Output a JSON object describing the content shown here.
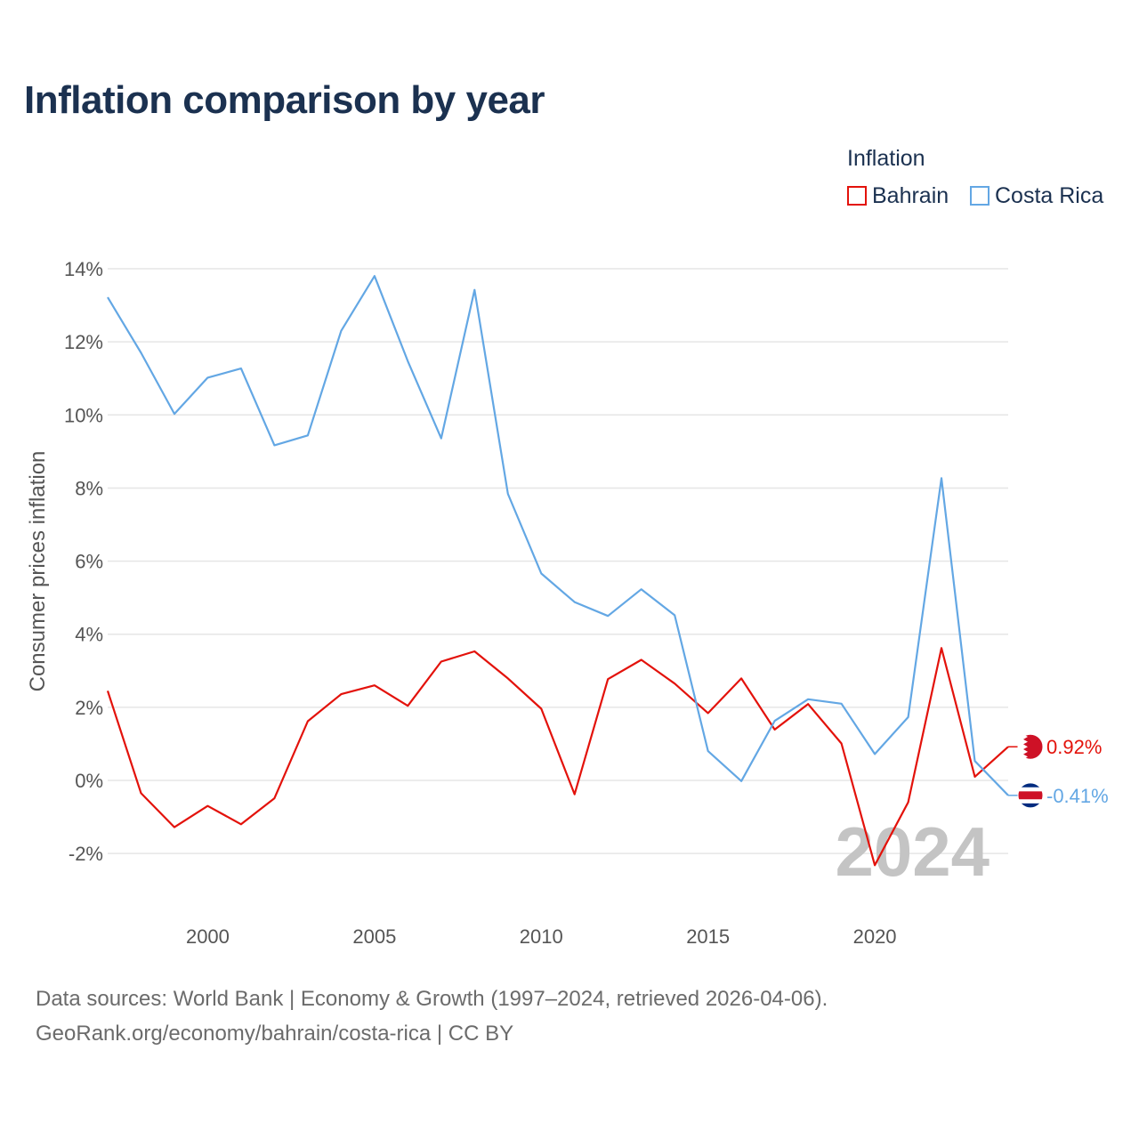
{
  "chart_data": {
    "type": "line",
    "title": "Inflation comparison by year",
    "legend_title": "Inflation",
    "legend_position": "top-right",
    "ylabel": "Consumer prices inflation",
    "xlabel": "",
    "xlim": [
      1997,
      2024
    ],
    "ylim": [
      -3,
      14.5
    ],
    "y_ticks": [
      14,
      12,
      10,
      8,
      6,
      4,
      2,
      0,
      -2
    ],
    "y_tick_labels": [
      "14%",
      "12%",
      "10%",
      "8%",
      "6%",
      "4%",
      "2%",
      "0%",
      "-2%"
    ],
    "x_ticks": [
      2000,
      2005,
      2010,
      2015,
      2020
    ],
    "x_tick_labels": [
      "2000",
      "2005",
      "2010",
      "2015",
      "2020"
    ],
    "grid": true,
    "year_label": "2024",
    "x": [
      1997,
      1998,
      1999,
      2000,
      2001,
      2002,
      2003,
      2004,
      2005,
      2006,
      2007,
      2008,
      2009,
      2010,
      2011,
      2012,
      2013,
      2014,
      2015,
      2016,
      2017,
      2018,
      2019,
      2020,
      2021,
      2022,
      2023,
      2024
    ],
    "series": [
      {
        "name": "Bahrain",
        "color": "#e3120b",
        "values": [
          2.45,
          -0.35,
          -1.28,
          -0.7,
          -1.2,
          -0.49,
          1.62,
          2.36,
          2.6,
          2.04,
          3.25,
          3.53,
          2.79,
          1.96,
          -0.38,
          2.77,
          3.3,
          2.65,
          1.84,
          2.79,
          1.39,
          2.09,
          1.01,
          -2.32,
          -0.6,
          3.62,
          0.1,
          0.92
        ],
        "end_label": "0.92%",
        "flag": "bahrain-flag-icon"
      },
      {
        "name": "Costa Rica",
        "color": "#63a7e4",
        "values": [
          13.22,
          11.7,
          10.03,
          11.02,
          11.27,
          9.17,
          9.44,
          12.3,
          13.8,
          11.47,
          9.36,
          13.42,
          7.84,
          5.66,
          4.88,
          4.5,
          5.23,
          4.52,
          0.8,
          -0.02,
          1.63,
          2.22,
          2.1,
          0.72,
          1.73,
          8.27,
          0.53,
          -0.41
        ],
        "end_label": "-0.41%",
        "flag": "costa-rica-flag-icon"
      }
    ]
  },
  "source": {
    "line1": "Data sources: World Bank | Economy & Growth (1997–2024, retrieved 2026-04-06).",
    "line2": "GeoRank.org/economy/bahrain/costa-rica | CC BY"
  }
}
